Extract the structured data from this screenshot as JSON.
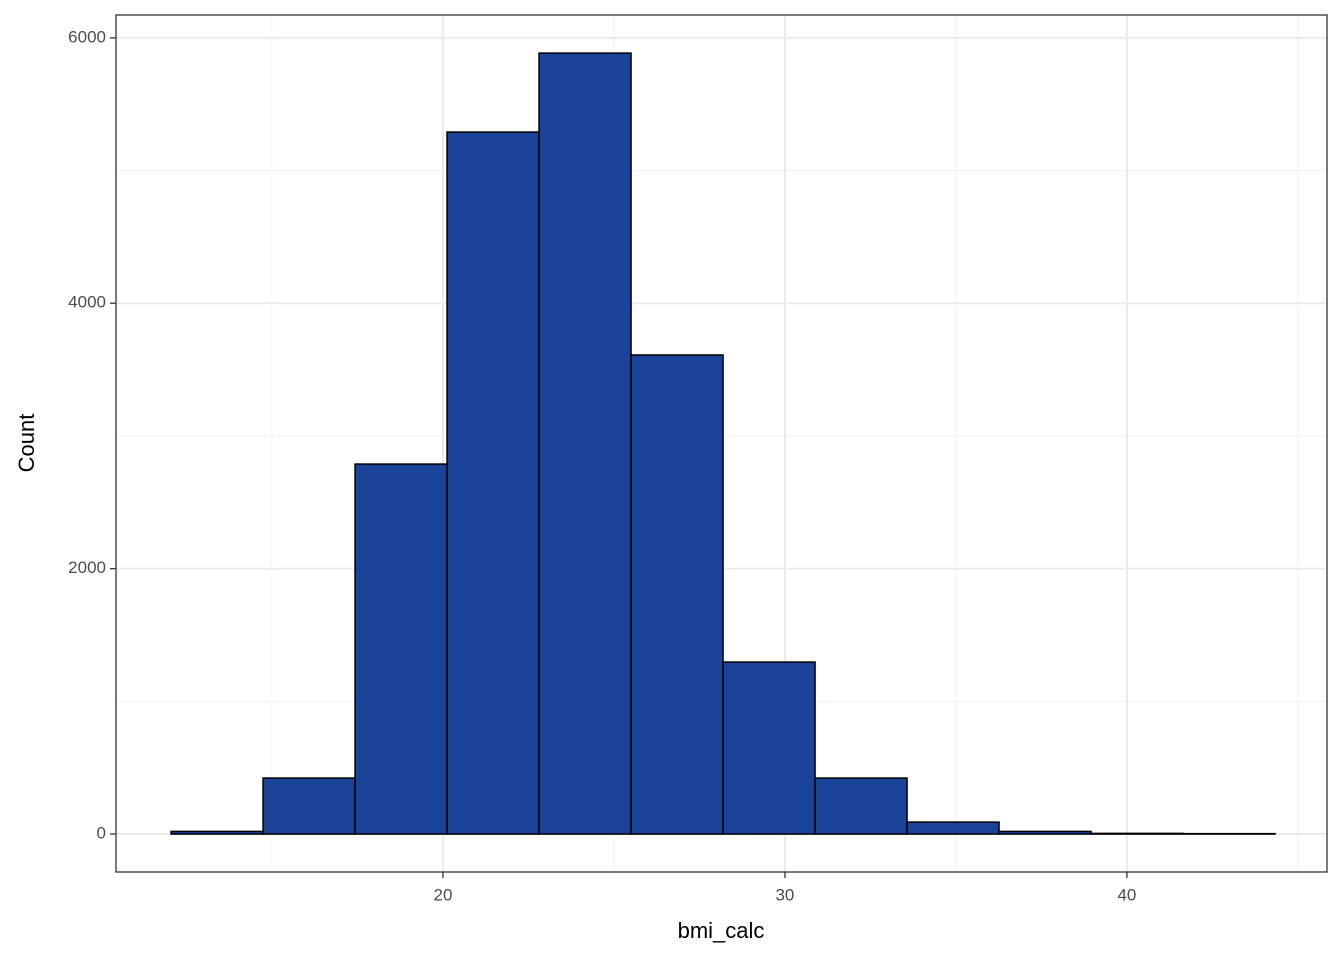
{
  "chart_data": {
    "type": "histogram",
    "x_label": "bmi_calc",
    "y_label": "Count",
    "bins": [
      12.05,
      14.74,
      17.43,
      20.12,
      22.81,
      25.5,
      28.19,
      30.88,
      33.57,
      36.26,
      38.95,
      41.64,
      44.33
    ],
    "values": [
      20,
      422,
      2788,
      5290,
      5885,
      3610,
      1296,
      422,
      90,
      20,
      5,
      3
    ],
    "color": "#19449a",
    "edgecolor": "#000000",
    "xlim": [
      10.44,
      45.85
    ],
    "xticks": [
      20,
      30,
      40
    ],
    "x_minor_ticks": [
      15,
      25,
      35,
      45
    ],
    "ylim": [
      -286,
      6172
    ],
    "yticks": [
      0,
      2000,
      4000,
      6000
    ],
    "y_minor_ticks": [
      1000,
      3000,
      5000
    ],
    "grid": true
  }
}
